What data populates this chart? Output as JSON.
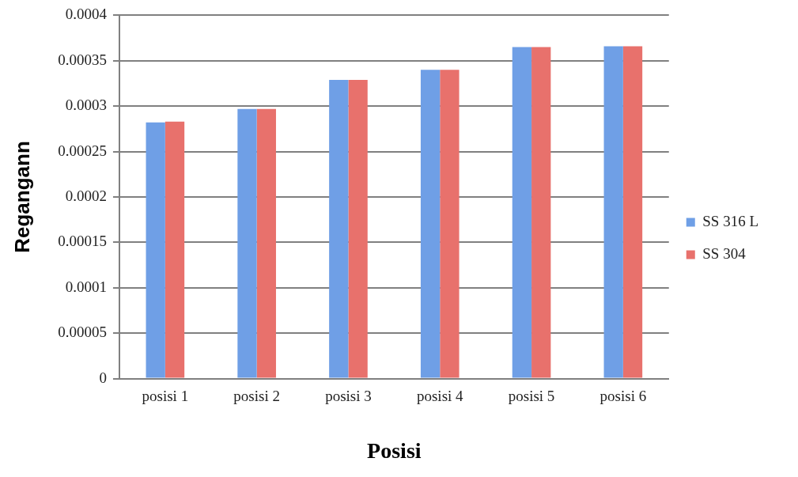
{
  "chart_data": {
    "type": "bar",
    "xlabel": "Posisi",
    "ylabel": "Regangann",
    "categories": [
      "posisi 1",
      "posisi 2",
      "posisi 3",
      "posisi 4",
      "posisi 5",
      "posisi 6"
    ],
    "series": [
      {
        "name": "SS 316 L",
        "color": "#6f9fe6",
        "values": [
          0.000282,
          0.000297,
          0.000329,
          0.00034,
          0.000365,
          0.000366
        ]
      },
      {
        "name": "SS 304",
        "color": "#e8716c",
        "values": [
          0.000283,
          0.000297,
          0.000329,
          0.00034,
          0.000365,
          0.000366
        ]
      }
    ],
    "ylim": [
      0,
      0.0004
    ],
    "yticks": [
      0,
      {
        "value": 5e-05,
        "label": "0.00005"
      },
      0.0001,
      0.00015,
      0.0002,
      0.00025,
      0.0003,
      0.00035,
      0.0004
    ],
    "grid": "y",
    "legend": "right"
  }
}
